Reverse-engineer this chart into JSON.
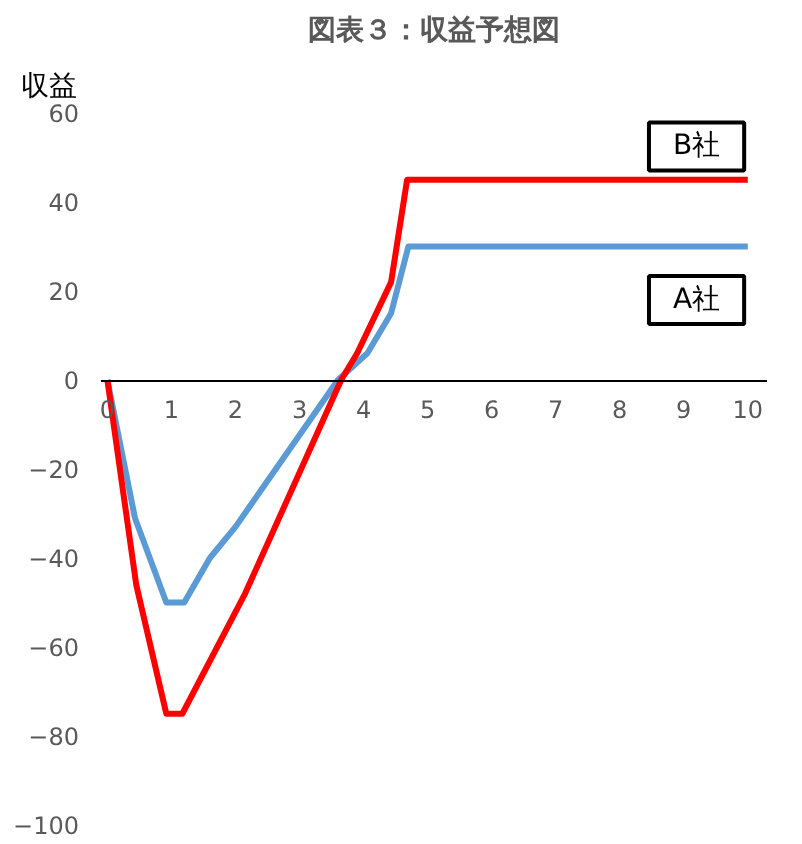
{
  "chart_data": {
    "type": "line",
    "title": "図表３：収益予想図",
    "ylabel": "収益",
    "xlim": [
      -0.1,
      10.3
    ],
    "xticks": [
      0,
      1,
      2,
      3,
      4,
      5,
      6,
      7,
      8,
      9,
      10
    ],
    "ylim": [
      -100,
      60
    ],
    "yticks": [
      -100,
      -80,
      -60,
      -40,
      -20,
      0,
      20,
      40,
      60
    ],
    "grid": false,
    "legend": false,
    "marker": "none",
    "line_style": "solid",
    "series": [
      {
        "name": "A社",
        "color": "#5b9bd5",
        "x": [
          0,
          0.43,
          0.92,
          1.2,
          1.6,
          2,
          3.6,
          4.06,
          4.43,
          4.7,
          10
        ],
        "values": [
          0,
          -31,
          -50,
          -50,
          -40,
          -33,
          0,
          6,
          15,
          30,
          30
        ]
      },
      {
        "name": "B社",
        "color": "#ff0000",
        "x": [
          0,
          0.45,
          0.92,
          1.17,
          2.15,
          3.65,
          3.9,
          4.43,
          4.68,
          10
        ],
        "values": [
          0,
          -46,
          -75,
          -75,
          -48,
          0,
          6,
          22,
          45,
          45
        ]
      }
    ]
  }
}
